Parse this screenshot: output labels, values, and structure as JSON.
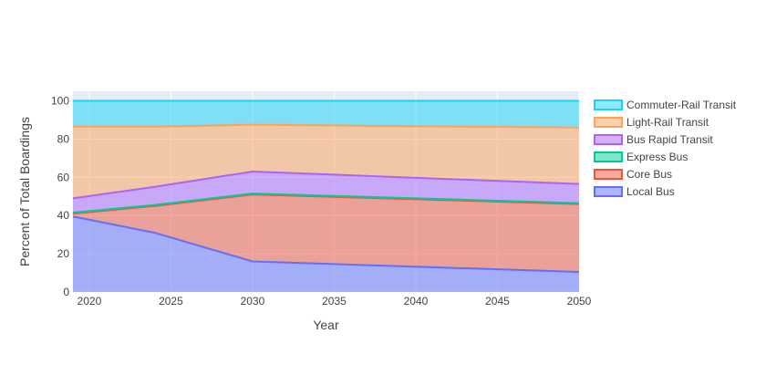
{
  "chart_data": {
    "type": "area",
    "stacked": true,
    "xlabel": "Year",
    "ylabel": "Percent of Total Boardings",
    "xlim": [
      2019,
      2050
    ],
    "ylim": [
      0,
      105
    ],
    "x_ticks": [
      "2020",
      "2025",
      "2030",
      "2035",
      "2040",
      "2045",
      "2050"
    ],
    "y_ticks": [
      "0",
      "20",
      "40",
      "60",
      "80",
      "100"
    ],
    "grid": true,
    "legend_position": "right",
    "x": [
      2019,
      2024,
      2030,
      2050
    ],
    "series": [
      {
        "name": "Local Bus",
        "color": "#636efa",
        "values": [
          39.5,
          31,
          16,
          10.5
        ]
      },
      {
        "name": "Core Bus",
        "color": "#ef553b",
        "values": [
          1.5,
          14,
          35,
          35.5
        ]
      },
      {
        "name": "Express Bus",
        "color": "#00cc96",
        "values": [
          0.5,
          0.5,
          0.5,
          0.5
        ]
      },
      {
        "name": "Bus Rapid Transit",
        "color": "#ab63fa",
        "values": [
          7.5,
          9.5,
          11.5,
          10
        ]
      },
      {
        "name": "Light-Rail Transit",
        "color": "#ffa15a",
        "values": [
          37.5,
          31.5,
          24.5,
          29.5
        ]
      },
      {
        "name": "Commuter-Rail Transit",
        "color": "#19d3f3",
        "values": [
          13.5,
          13.5,
          12.5,
          14
        ]
      }
    ]
  }
}
